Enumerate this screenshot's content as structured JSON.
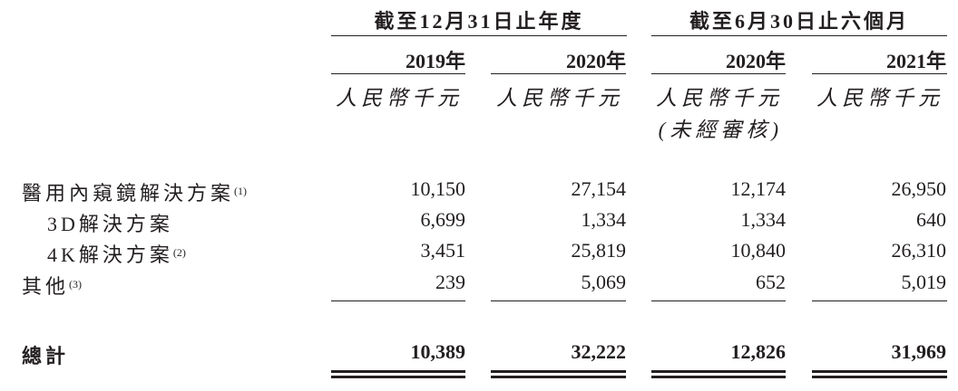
{
  "header": {
    "groups": [
      "截至12月31日止年度",
      "截至6月30日止六個月"
    ],
    "years": [
      "2019年",
      "2020年",
      "2020年",
      "2021年"
    ],
    "unit": "人民幣千元",
    "unaudited": "(未經審核)"
  },
  "rows": [
    {
      "label": "醫用內窺鏡解決方案",
      "note": "(1)",
      "values": [
        "10,150",
        "27,154",
        "12,174",
        "26,950"
      ]
    },
    {
      "label": "3D解決方案",
      "note": "",
      "values": [
        "6,699",
        "1,334",
        "1,334",
        "640"
      ]
    },
    {
      "label": "4K解決方案",
      "note": "(2)",
      "values": [
        "3,451",
        "25,819",
        "10,840",
        "26,310"
      ]
    },
    {
      "label": "其他",
      "note": "(3)",
      "values": [
        "239",
        "5,069",
        "652",
        "5,019"
      ]
    }
  ],
  "total": {
    "label": "總計",
    "values": [
      "10,389",
      "32,222",
      "12,826",
      "31,969"
    ]
  }
}
